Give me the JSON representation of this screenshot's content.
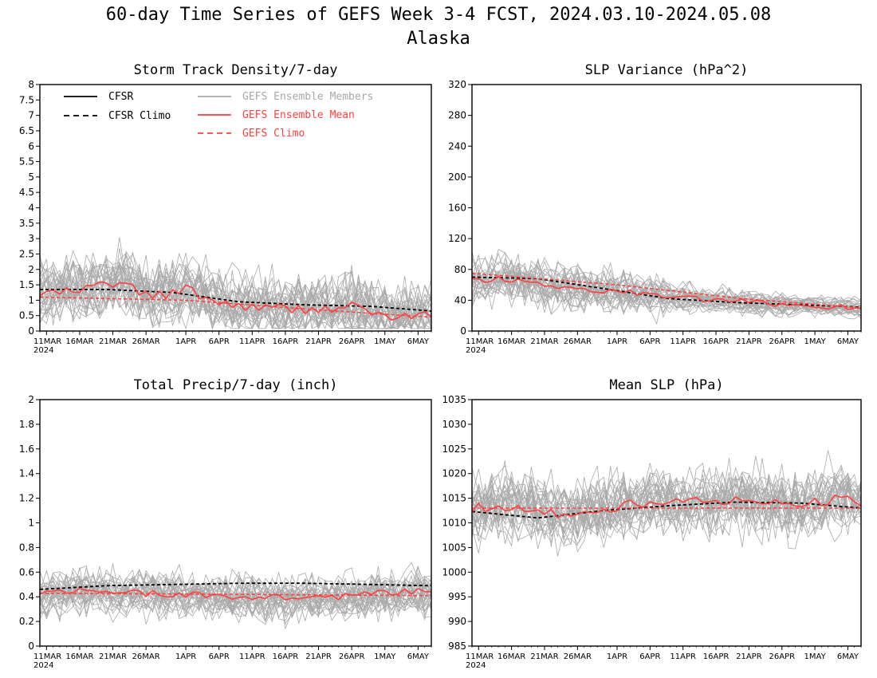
{
  "page": {
    "title_line1": "60-day Time Series of GEFS Week 3-4 FCST, 2024.03.10-2024.05.08",
    "title_line2": "Alaska"
  },
  "colors": {
    "cfsr": "#000000",
    "gefs_members": "#a9a9a9",
    "gefs_mean": "#ff4040",
    "gefs_climo": "#ff4040"
  },
  "legend": [
    {
      "label": "CFSR",
      "color": "#000000",
      "style": "solid"
    },
    {
      "label": "CFSR Climo",
      "color": "#000000",
      "style": "dashed"
    },
    {
      "label": "GEFS Ensemble Members",
      "color": "#a9a9a9",
      "style": "solid"
    },
    {
      "label": "GEFS Ensemble Mean",
      "color": "#ff4040",
      "style": "solid"
    },
    {
      "label": "GEFS Climo",
      "color": "#ff4040",
      "style": "dashed"
    }
  ],
  "x_tick_labels": [
    "11MAR",
    "16MAR",
    "21MAR",
    "26MAR",
    "1APR",
    "6APR",
    "11APR",
    "16APR",
    "21APR",
    "26APR",
    "1MAY",
    "6MAY"
  ],
  "x_tick_days": [
    11,
    16,
    21,
    26,
    32,
    37,
    42,
    47,
    52,
    57,
    62,
    67
  ],
  "x_year_label": "2024",
  "chart_data": [
    {
      "type": "line",
      "title": "Storm Track Density/7-day",
      "x_range": [
        "2024-03-10",
        "2024-05-08"
      ],
      "ylim": [
        0,
        8
      ],
      "y_ticks": [
        0,
        0.5,
        1,
        1.5,
        2,
        2.5,
        3,
        3.5,
        4,
        4.5,
        5,
        5.5,
        6,
        6.5,
        7,
        7.5,
        8
      ],
      "legend_position": "top",
      "series": [
        {
          "name": "CFSR Climo",
          "style": "dashed",
          "x_dates": [
            "2024-03-10",
            "2024-03-20",
            "2024-03-30",
            "2024-04-09",
            "2024-04-19",
            "2024-04-29",
            "2024-05-08"
          ],
          "values": [
            1.35,
            1.35,
            1.25,
            0.95,
            0.85,
            0.8,
            0.65
          ]
        },
        {
          "name": "GEFS Ensemble Mean",
          "style": "solid",
          "x_dates": [
            "2024-03-10",
            "2024-03-16",
            "2024-03-19",
            "2024-03-22",
            "2024-03-27",
            "2024-04-01",
            "2024-04-06",
            "2024-04-13",
            "2024-04-20",
            "2024-04-27",
            "2024-05-01",
            "2024-05-08"
          ],
          "values": [
            1.2,
            1.3,
            1.5,
            1.55,
            1.1,
            1.35,
            0.9,
            0.75,
            0.7,
            0.8,
            0.45,
            0.5
          ]
        },
        {
          "name": "GEFS Climo",
          "style": "dashed",
          "x_dates": [
            "2024-03-10",
            "2024-04-01",
            "2024-04-20",
            "2024-05-08"
          ],
          "values": [
            1.1,
            1.0,
            0.7,
            0.45
          ]
        }
      ]
    },
    {
      "type": "line",
      "title": "SLP Variance (hPa^2)",
      "x_range": [
        "2024-03-10",
        "2024-05-08"
      ],
      "ylim": [
        0,
        320
      ],
      "y_ticks": [
        0,
        40,
        80,
        120,
        160,
        200,
        240,
        280,
        320
      ],
      "series": [
        {
          "name": "CFSR Climo",
          "style": "dashed",
          "x_dates": [
            "2024-03-10",
            "2024-03-20",
            "2024-03-30",
            "2024-04-09",
            "2024-04-19",
            "2024-04-29",
            "2024-05-08"
          ],
          "values": [
            70,
            68,
            55,
            42,
            37,
            34,
            31
          ]
        },
        {
          "name": "GEFS Ensemble Mean",
          "style": "solid",
          "x_dates": [
            "2024-03-10",
            "2024-03-15",
            "2024-03-20",
            "2024-03-25",
            "2024-04-01",
            "2024-04-08",
            "2024-04-15",
            "2024-04-22",
            "2024-04-29",
            "2024-05-08"
          ],
          "values": [
            65,
            68,
            62,
            55,
            52,
            45,
            40,
            37,
            33,
            30
          ]
        },
        {
          "name": "GEFS Climo",
          "style": "dashed",
          "x_dates": [
            "2024-03-10",
            "2024-04-01",
            "2024-04-20",
            "2024-05-08"
          ],
          "values": [
            75,
            60,
            42,
            30
          ]
        }
      ]
    },
    {
      "type": "line",
      "title": "Total Precip/7-day (inch)",
      "x_range": [
        "2024-03-10",
        "2024-05-08"
      ],
      "ylim": [
        0,
        2
      ],
      "y_ticks": [
        0,
        0.2,
        0.4,
        0.6,
        0.8,
        1,
        1.2,
        1.4,
        1.6,
        1.8,
        2
      ],
      "series": [
        {
          "name": "CFSR Climo",
          "style": "dashed",
          "x_dates": [
            "2024-03-10",
            "2024-03-20",
            "2024-03-30",
            "2024-04-09",
            "2024-04-19",
            "2024-04-29",
            "2024-05-08"
          ],
          "values": [
            0.46,
            0.49,
            0.5,
            0.51,
            0.51,
            0.5,
            0.49
          ]
        },
        {
          "name": "GEFS Ensemble Mean",
          "style": "solid",
          "x_dates": [
            "2024-03-10",
            "2024-03-17",
            "2024-03-24",
            "2024-03-31",
            "2024-04-07",
            "2024-04-14",
            "2024-04-21",
            "2024-04-28",
            "2024-05-05",
            "2024-05-08"
          ],
          "values": [
            0.42,
            0.46,
            0.43,
            0.42,
            0.4,
            0.4,
            0.39,
            0.42,
            0.44,
            0.44
          ]
        },
        {
          "name": "GEFS Climo",
          "style": "dashed",
          "x_dates": [
            "2024-03-10",
            "2024-05-08"
          ],
          "values": [
            0.43,
            0.41
          ]
        }
      ]
    },
    {
      "type": "line",
      "title": "Mean SLP (hPa)",
      "x_range": [
        "2024-03-10",
        "2024-05-08"
      ],
      "ylim": [
        985,
        1035
      ],
      "y_ticks": [
        985,
        990,
        995,
        1000,
        1005,
        1010,
        1015,
        1020,
        1025,
        1030,
        1035
      ],
      "series": [
        {
          "name": "CFSR Climo",
          "style": "dashed",
          "x_dates": [
            "2024-03-10",
            "2024-03-20",
            "2024-03-30",
            "2024-04-09",
            "2024-04-19",
            "2024-04-29",
            "2024-05-08"
          ],
          "values": [
            1012.3,
            1011.0,
            1012.5,
            1013.5,
            1014.2,
            1014.0,
            1013.0
          ]
        },
        {
          "name": "GEFS Ensemble Mean",
          "style": "solid",
          "x_dates": [
            "2024-03-10",
            "2024-03-17",
            "2024-03-24",
            "2024-03-31",
            "2024-04-07",
            "2024-04-14",
            "2024-04-21",
            "2024-04-28",
            "2024-05-05",
            "2024-05-08"
          ],
          "values": [
            1013,
            1013.5,
            1011.5,
            1013,
            1014.5,
            1014.5,
            1014.5,
            1013.5,
            1015,
            1014
          ]
        },
        {
          "name": "GEFS Climo",
          "style": "dashed",
          "x_dates": [
            "2024-03-10",
            "2024-05-08"
          ],
          "values": [
            1013,
            1013
          ]
        }
      ]
    }
  ]
}
